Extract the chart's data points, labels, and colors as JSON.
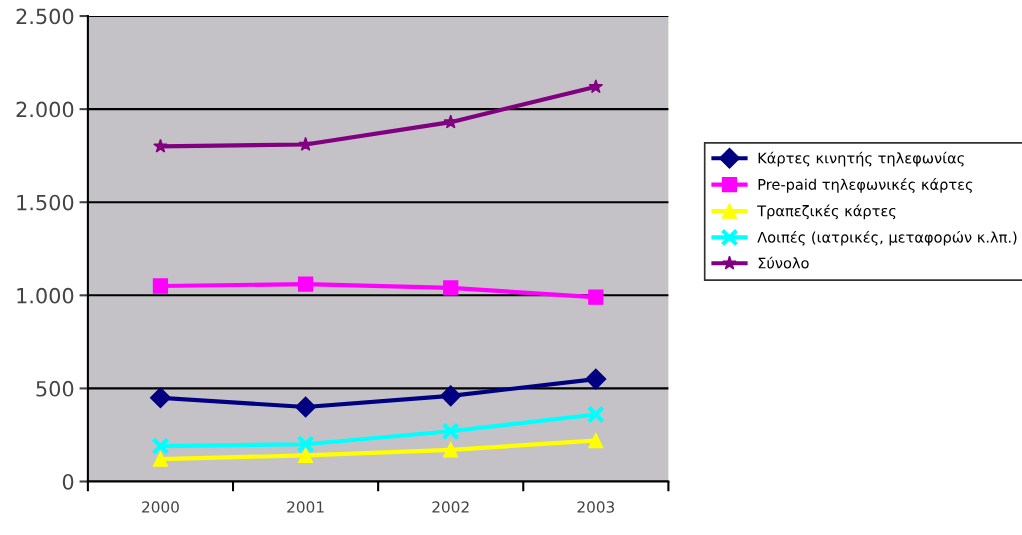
{
  "chart_data": {
    "type": "line",
    "categories": [
      "2000",
      "2001",
      "2002",
      "2003"
    ],
    "series": [
      {
        "name": "Κάρτες κινητής τηλεφωνίας",
        "color": "#000080",
        "marker": "diamond",
        "values": [
          450,
          400,
          460,
          550
        ]
      },
      {
        "name": "Pre-paid τηλεφωνικές κάρτες",
        "color": "#ff00ff",
        "marker": "square",
        "values": [
          1050,
          1060,
          1040,
          990
        ]
      },
      {
        "name": "Τραπεζικές κάρτες",
        "color": "#ffff00",
        "marker": "triangle",
        "values": [
          120,
          140,
          170,
          220
        ]
      },
      {
        "name": "Λοιπές (ιατρικές, μεταφορών κ.λπ.)",
        "color": "#00ffff",
        "marker": "cross",
        "values": [
          190,
          200,
          270,
          360
        ]
      },
      {
        "name": "Σύνολο",
        "color": "#800080",
        "marker": "star",
        "values": [
          1800,
          1810,
          1930,
          2120
        ]
      }
    ],
    "ylim": [
      0,
      2500
    ],
    "yticks": [
      0,
      500,
      {
        "value": 1000,
        "label": "1.000"
      },
      {
        "value": 1500,
        "label": "1.500"
      },
      {
        "value": 2000,
        "label": "2.000"
      },
      {
        "value": 2500,
        "label": "2.500"
      }
    ],
    "grid": "y",
    "legend": "right",
    "line_style": "solid"
  }
}
